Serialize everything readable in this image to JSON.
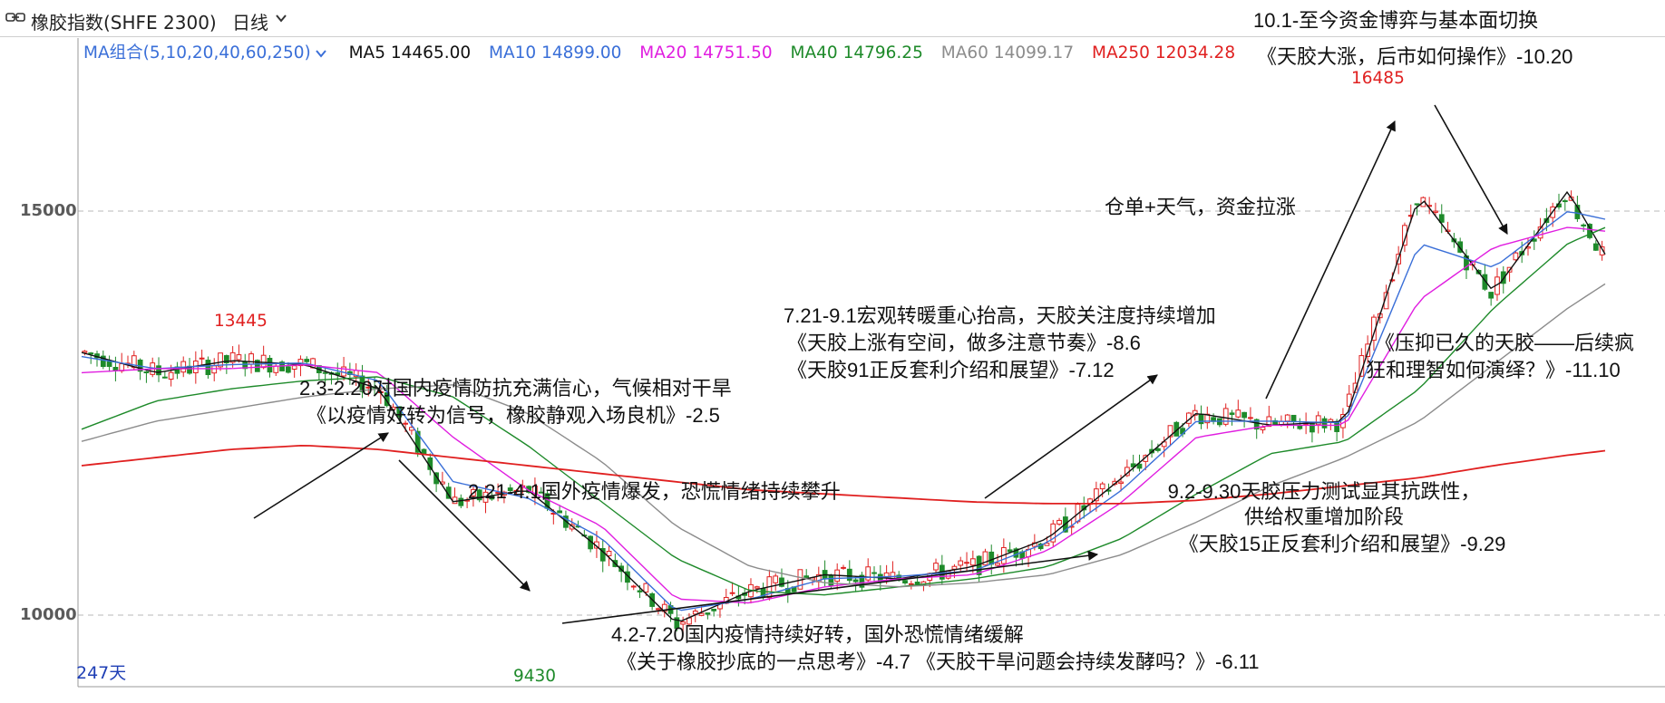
{
  "header": {
    "instrument": "橡胶指数(SHFE 2300)",
    "period": "日线",
    "icons": [
      "link-icon",
      "chevron-down-icon"
    ]
  },
  "ma_legend": {
    "combo_label": "MA组合(5,10,20,40,60,250)",
    "items": [
      {
        "label": "MA5",
        "value": "14465.00",
        "color": "#111111"
      },
      {
        "label": "MA10",
        "value": "14899.00",
        "color": "#3a6fd8"
      },
      {
        "label": "MA20",
        "value": "14751.50",
        "color": "#e01ee0"
      },
      {
        "label": "MA40",
        "value": "14796.25",
        "color": "#1e8a2a"
      },
      {
        "label": "MA60",
        "value": "14099.17",
        "color": "#8c8c8c"
      },
      {
        "label": "MA250",
        "value": "12034.28",
        "color": "#e02020"
      }
    ]
  },
  "colors": {
    "up": "#e02020",
    "down": "#1e8a2a",
    "grid": "#c8c8c8",
    "axis": "#5a5a5a",
    "combo": "#3a6fd8"
  },
  "y_axis": {
    "ticks": [
      "15000",
      "10000"
    ]
  },
  "peaks": {
    "high_left": "13445",
    "high_right": "16485",
    "low": "9430"
  },
  "day_count": "247天",
  "annotations": {
    "a1_line1": "2.3-2.20对国内疫情防抗充满信心，气候相对干旱",
    "a1_line2": "《以疫情好转为信号，橡胶静观入场良机》-2.5",
    "a2": "2.21-4.1国外疫情爆发，恐慌情绪持续攀升",
    "a3_line1": "4.2-7.20国内疫情持续好转，国外恐慌情绪缓解",
    "a3_line2": "《关于橡胶抄底的一点思考》-4.7  《天胶干旱问题会持续发酵吗？》-6.11",
    "a4_line1": "7.21-9.1宏观转暖重心抬高，天胶关注度持续增加",
    "a4_line2": "《天胶上涨有空间，做多注意节奏》-8.6",
    "a4_line3": "《天胶91正反套利介绍和展望》-7.12",
    "a5_line1": "9.2-9.30天胶压力测试显其抗跌性，",
    "a5_line2": "供给权重增加阶段",
    "a5_line3": "《天胶15正反套利介绍和展望》-9.29",
    "a6": "仓单+天气，资金拉涨",
    "a7_line1": "10.1-至今资金博弈与基本面切换",
    "a7_line2": "《天胶大涨，后市如何操作》-10.20",
    "a8_line1": "《压抑已久的天胶——后续疯",
    "a8_line2": "狂和理智如何演绎？》-11.10"
  },
  "chart_data": {
    "type": "line",
    "title": "橡胶指数(SHFE 2300)",
    "period": "日线",
    "xlabel": "",
    "ylabel": "",
    "ylim": [
      9200,
      16700
    ],
    "grid": true,
    "legend": "top-left",
    "x": [
      0,
      12,
      24,
      36,
      48,
      60,
      72,
      84,
      96,
      108,
      120,
      132,
      144,
      156,
      168,
      180,
      192,
      204,
      216,
      228,
      240,
      246
    ],
    "series": [
      {
        "name": "MA5",
        "values": [
          13250,
          13000,
          13150,
          13100,
          12800,
          11400,
          11550,
          10800,
          9900,
          10300,
          10500,
          10450,
          10600,
          10950,
          11700,
          12500,
          12350,
          12400,
          15200,
          14000,
          15250,
          14465
        ]
      },
      {
        "name": "MA10",
        "values": [
          13200,
          13050,
          13100,
          13120,
          12900,
          11650,
          11450,
          10950,
          10050,
          10200,
          10450,
          10480,
          10550,
          10900,
          11550,
          12400,
          12400,
          12380,
          14600,
          14300,
          15000,
          14899
        ]
      },
      {
        "name": "MA20",
        "values": [
          13000,
          13050,
          13050,
          13100,
          13000,
          12200,
          11550,
          11100,
          10200,
          10150,
          10350,
          10450,
          10500,
          10800,
          11400,
          12200,
          12350,
          12350,
          13900,
          14550,
          14800,
          14751.5
        ]
      },
      {
        "name": "MA40",
        "values": [
          12300,
          12650,
          12800,
          12900,
          12950,
          12700,
          12100,
          11400,
          10700,
          10300,
          10250,
          10350,
          10450,
          10600,
          10950,
          11500,
          12000,
          12150,
          12800,
          13800,
          14600,
          14796.25
        ]
      },
      {
        "name": "MA60",
        "values": [
          12150,
          12400,
          12550,
          12700,
          12800,
          12850,
          12500,
          11900,
          11100,
          10600,
          10400,
          10350,
          10400,
          10500,
          10750,
          11150,
          11600,
          11950,
          12400,
          13100,
          13800,
          14099.17
        ]
      },
      {
        "name": "MA250",
        "values": [
          11850,
          11950,
          12050,
          12100,
          12050,
          11950,
          11850,
          11750,
          11650,
          11550,
          11500,
          11450,
          11400,
          11380,
          11380,
          11420,
          11500,
          11600,
          11700,
          11850,
          11980,
          12034.28
        ]
      }
    ],
    "extremes": {
      "high_1": 13445,
      "high_2": 16485,
      "low": 9430
    },
    "candles_shown": 247
  }
}
